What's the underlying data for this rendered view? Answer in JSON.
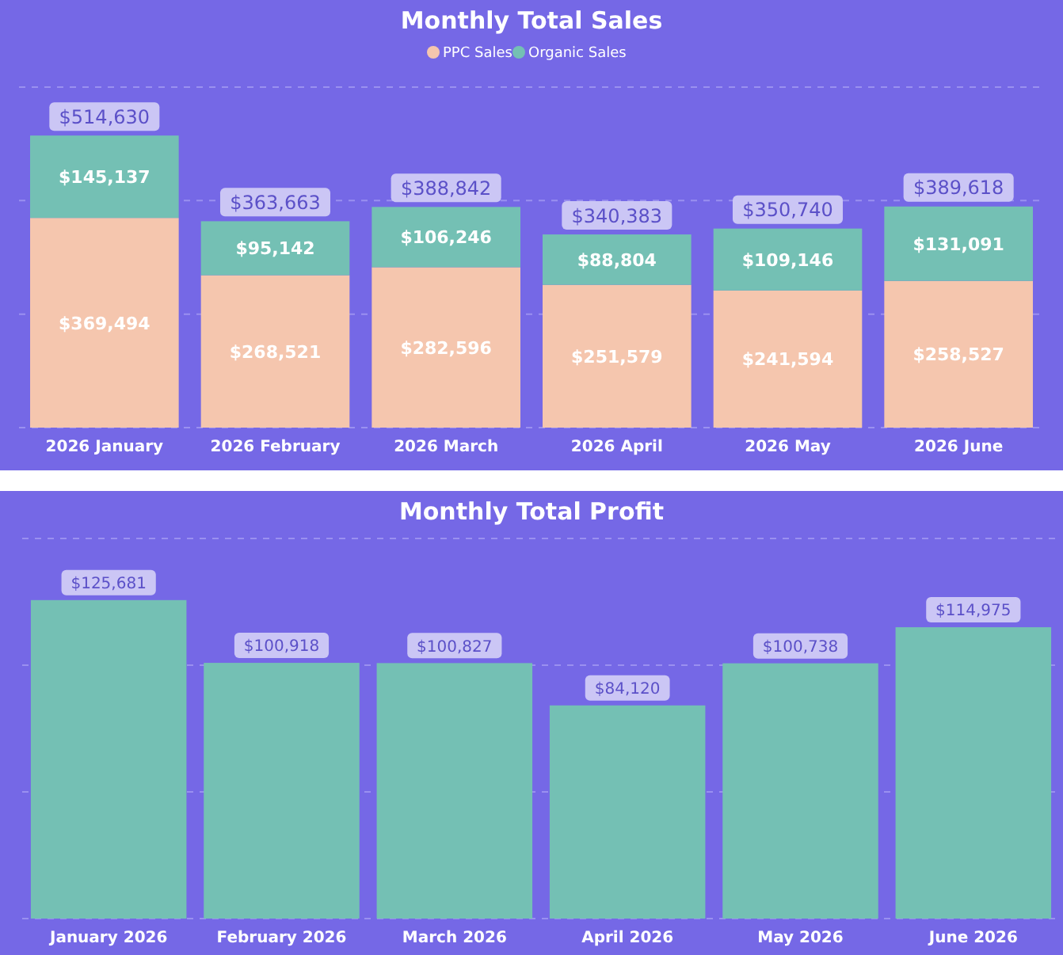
{
  "chart_data": [
    {
      "type": "bar",
      "title": "Monthly Total Sales",
      "categories": [
        "2026 January",
        "2026 February",
        "2026 March",
        "2026 April",
        "2026 May",
        "2026 June"
      ],
      "stacked": true,
      "legend": "top",
      "grid": "y",
      "tick_labels": "x",
      "ylim": [
        0,
        600000
      ],
      "yticks": [
        {
          "value": 0,
          "label": null
        },
        {
          "value": 200000,
          "label": null
        },
        {
          "value": 400000,
          "label": null
        },
        {
          "value": 600000,
          "label": null
        }
      ],
      "series": [
        {
          "name": "PPC Sales",
          "color": "#f5c6ae",
          "values": [
            369494,
            268521,
            282596,
            251579,
            241594,
            258527
          ],
          "value_labels": [
            "$369,494",
            "$268,521",
            "$282,596",
            "$251,579",
            "$241,594",
            "$258,527"
          ]
        },
        {
          "name": "Organic Sales",
          "color": "#74c0b4",
          "values": [
            145137,
            95142,
            106246,
            88804,
            109146,
            131091
          ],
          "value_labels": [
            "$145,137",
            "$95,142",
            "$106,246",
            "$88,804",
            "$109,146",
            "$131,091"
          ]
        }
      ],
      "totals": [
        "$514,630",
        "$363,663",
        "$388,842",
        "$340,383",
        "$350,740",
        "$389,618"
      ]
    },
    {
      "type": "bar",
      "title": "Monthly Total Profit",
      "categories": [
        "January 2026",
        "February 2026",
        "March 2026",
        "April 2026",
        "May 2026",
        "June 2026"
      ],
      "grid": "y",
      "tick_labels": "x",
      "ylim": [
        0,
        150000
      ],
      "yticks": [
        {
          "value": 0,
          "label": null
        },
        {
          "value": 50000,
          "label": null
        },
        {
          "value": 100000,
          "label": null
        },
        {
          "value": 150000,
          "label": null
        }
      ],
      "color": "#74c0b4",
      "values": [
        125681,
        100918,
        100827,
        84120,
        100738,
        114975
      ],
      "value_labels": [
        "$125,681",
        "$100,918",
        "$100,827",
        "$84,120",
        "$100,738",
        "$114,975"
      ]
    }
  ]
}
